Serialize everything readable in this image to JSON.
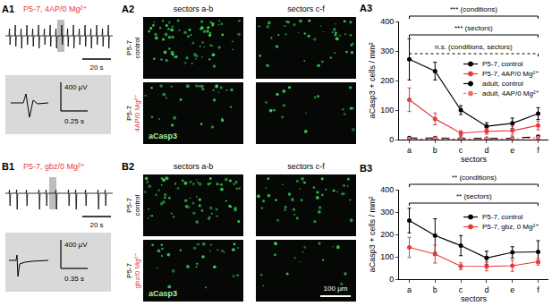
{
  "chart_data": [
    {
      "type": "line",
      "title": "A3",
      "x_label": "sectors",
      "y_label": "aCasp3 + cells / mm²",
      "categories": [
        "a",
        "b",
        "c",
        "d",
        "e",
        "f"
      ],
      "ylim": [
        0,
        400
      ],
      "yticks": [
        0,
        100,
        200,
        300,
        400
      ],
      "legend": "upper right",
      "series": [
        {
          "name": "P5-7, control",
          "color": "#000000",
          "marker": "circle",
          "line_style": "solid",
          "values": [
            272,
            232,
            100,
            45,
            55,
            88
          ],
          "error": [
            70,
            30,
            15,
            12,
            18,
            20
          ]
        },
        {
          "name": "P5-7, 4AP/0 Mg²⁺",
          "color": "#e8393e",
          "marker": "circle",
          "line_style": "solid",
          "values": [
            135,
            70,
            22,
            28,
            30,
            48
          ],
          "error": [
            40,
            20,
            8,
            10,
            15,
            15
          ]
        },
        {
          "name": "adult, control",
          "color": "#000000",
          "marker": "circle",
          "line_style": "dashed",
          "values": [
            5,
            5,
            4,
            3,
            4,
            10
          ],
          "error": [
            2,
            2,
            2,
            2,
            2,
            3
          ]
        },
        {
          "name": "adult, 4AP/0 Mg²⁺",
          "color": "#ef6b6b",
          "marker": "circle",
          "line_style": "dotted",
          "values": [
            2,
            3,
            2,
            2,
            2,
            6
          ],
          "error": [
            1,
            1,
            1,
            1,
            1,
            2
          ]
        }
      ],
      "annotations": [
        {
          "text": "*** (conditions)",
          "line_style": "solid"
        },
        {
          "text": "*** (sectors)",
          "line_style": "solid"
        },
        {
          "text": "n.s. (conditions, sectors)",
          "line_style": "dotted"
        }
      ]
    },
    {
      "type": "line",
      "title": "B3",
      "x_label": "sectors",
      "y_label": "aCasp3 + cells / mm²",
      "categories": [
        "a",
        "b",
        "c",
        "d",
        "e",
        "f"
      ],
      "ylim": [
        0,
        400
      ],
      "yticks": [
        0,
        100,
        200,
        300,
        400
      ],
      "legend": "upper right",
      "series": [
        {
          "name": "P5-7, control",
          "color": "#000000",
          "marker": "circle",
          "line_style": "solid",
          "values": [
            262,
            195,
            150,
            95,
            120,
            122
          ],
          "error": [
            55,
            75,
            45,
            30,
            25,
            50
          ]
        },
        {
          "name": "P5-7, gbz, 0 Mg²⁺",
          "color": "#e8393e",
          "marker": "circle",
          "line_style": "solid",
          "values": [
            142,
            112,
            58,
            57,
            60,
            78
          ],
          "error": [
            45,
            40,
            15,
            20,
            25,
            15
          ]
        }
      ],
      "annotations": [
        {
          "text": "** (conditions)",
          "line_style": "solid"
        },
        {
          "text": "** (sectors)",
          "line_style": "solid"
        }
      ]
    }
  ],
  "panels": {
    "A1": {
      "label": "A1",
      "title": "P5-7, 4AP/0 Mg²⁺",
      "color": "#e8393e",
      "time_scale": "20 s",
      "inset_amplitude": "400 µV",
      "inset_time": "0.25 s"
    },
    "B1": {
      "label": "B1",
      "title": "P5-7, gbz/0 Mg²⁺",
      "color": "#e8393e",
      "time_scale": "20 s",
      "inset_amplitude": "400 µV",
      "inset_time": "0.35 s"
    },
    "A2": {
      "label": "A2",
      "columns": [
        "sectors a-b",
        "sectors c-f"
      ],
      "rows": [
        [
          {
            "text": "P5-7",
            "color": "#000000"
          },
          {
            "text": "control",
            "color": "#000000"
          }
        ],
        [
          {
            "text": "P5-7",
            "color": "#000000"
          },
          {
            "text": "4AP/0 Mg²⁺",
            "color": "#e8393e"
          }
        ]
      ],
      "stain": "aCasp3"
    },
    "B2": {
      "label": "B2",
      "columns": [
        "sectors a-b",
        "sectors c-f"
      ],
      "rows": [
        [
          {
            "text": "P5-7",
            "color": "#000000"
          },
          {
            "text": "control",
            "color": "#000000"
          }
        ],
        [
          {
            "text": "P5-7",
            "color": "#000000"
          },
          {
            "text": "gbz/0 Mg²⁺",
            "color": "#e8393e"
          }
        ]
      ],
      "stain": "aCasp3",
      "scale_bar": "100 µm"
    }
  }
}
